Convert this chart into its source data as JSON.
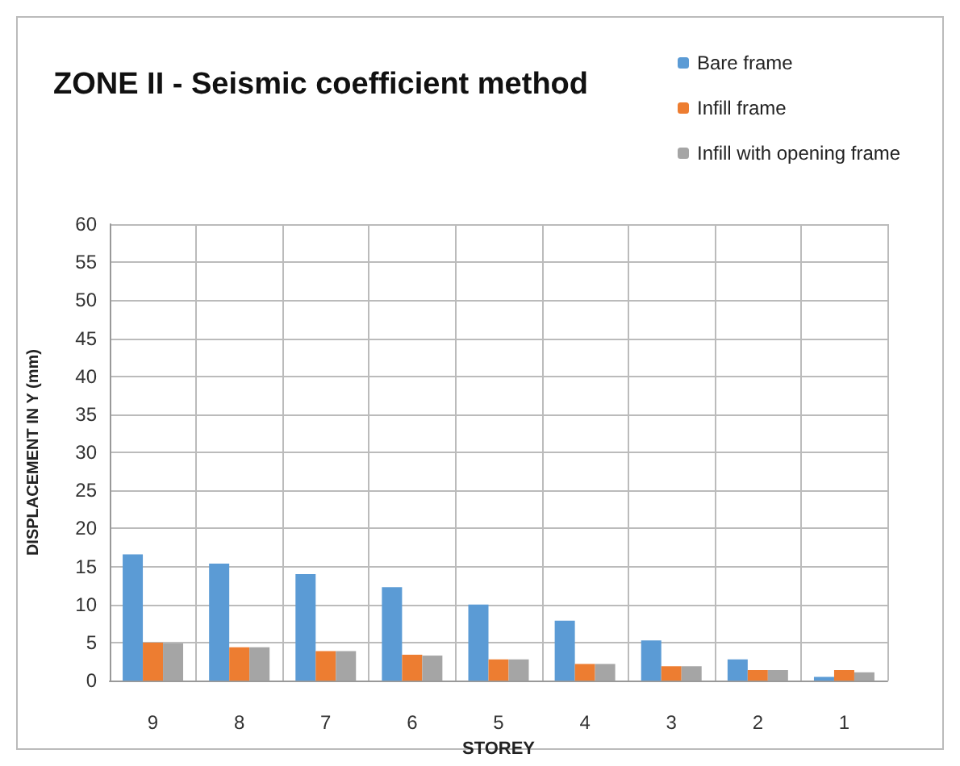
{
  "chart_data": {
    "type": "bar",
    "title": "ZONE II - Seismic coefficient method",
    "xlabel": "STOREY",
    "ylabel": "DISPLACEMENT IN Y (mm)",
    "categories": [
      "9",
      "8",
      "7",
      "6",
      "5",
      "4",
      "3",
      "2",
      "1"
    ],
    "series": [
      {
        "name": "Bare frame",
        "color": "#5b9bd5",
        "values": [
          16.6,
          15.4,
          14.0,
          12.3,
          10.0,
          7.9,
          5.3,
          2.8,
          0.5
        ]
      },
      {
        "name": "Infill frame",
        "color": "#ed7d31",
        "values": [
          5.0,
          4.4,
          3.9,
          3.4,
          2.8,
          2.2,
          1.9,
          1.4,
          1.4
        ]
      },
      {
        "name": "Infill with opening frame",
        "color": "#a5a5a5",
        "values": [
          4.9,
          4.4,
          3.9,
          3.3,
          2.8,
          2.2,
          1.9,
          1.4,
          1.1
        ]
      }
    ],
    "ylim": [
      0,
      60
    ],
    "yticks": [
      0,
      5,
      10,
      15,
      20,
      25,
      30,
      35,
      40,
      45,
      50,
      55,
      60
    ],
    "grid": true,
    "legend": "top right"
  }
}
